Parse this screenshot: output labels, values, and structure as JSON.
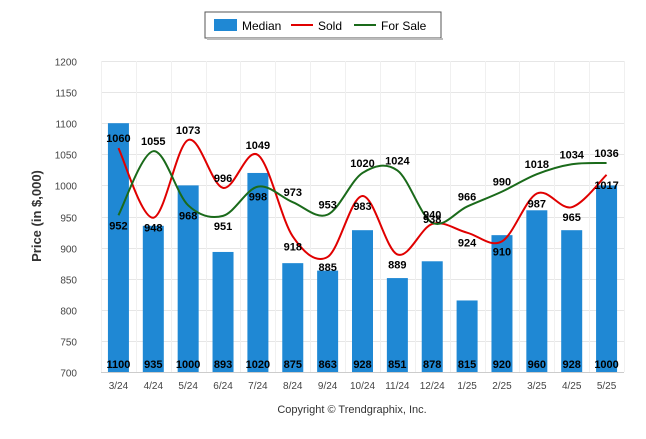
{
  "chart_data": {
    "type": "bar",
    "categories": [
      "3/24",
      "4/24",
      "5/24",
      "6/24",
      "7/24",
      "8/24",
      "9/24",
      "10/24",
      "11/24",
      "12/24",
      "1/25",
      "2/25",
      "3/25",
      "4/25",
      "5/25"
    ],
    "series": [
      {
        "name": "Median",
        "type": "bar",
        "color": "#1f88d4",
        "values": [
          1100,
          935,
          1000,
          893,
          1020,
          875,
          863,
          928,
          851,
          878,
          815,
          920,
          960,
          928,
          1000
        ]
      },
      {
        "name": "Sold",
        "type": "line",
        "color": "#e00000",
        "values": [
          1060,
          948,
          1073,
          996,
          1049,
          918,
          885,
          983,
          889,
          938,
          924,
          910,
          987,
          965,
          1017
        ]
      },
      {
        "name": "For Sale",
        "type": "line",
        "color": "#1a6a1a",
        "values": [
          952,
          1055,
          968,
          951,
          998,
          973,
          953,
          1020,
          1024,
          940,
          966,
          990,
          1018,
          1034,
          1036
        ]
      }
    ],
    "ylabel": "Price (in $,000)",
    "xlabel": "",
    "ylim": [
      700,
      1200
    ],
    "yticks": [
      700,
      750,
      800,
      850,
      900,
      950,
      1000,
      1050,
      1100,
      1150,
      1200
    ],
    "grid": true,
    "legend_position": "top-center"
  },
  "footer": {
    "copyright": "Copyright © Trendgraphix, Inc."
  }
}
